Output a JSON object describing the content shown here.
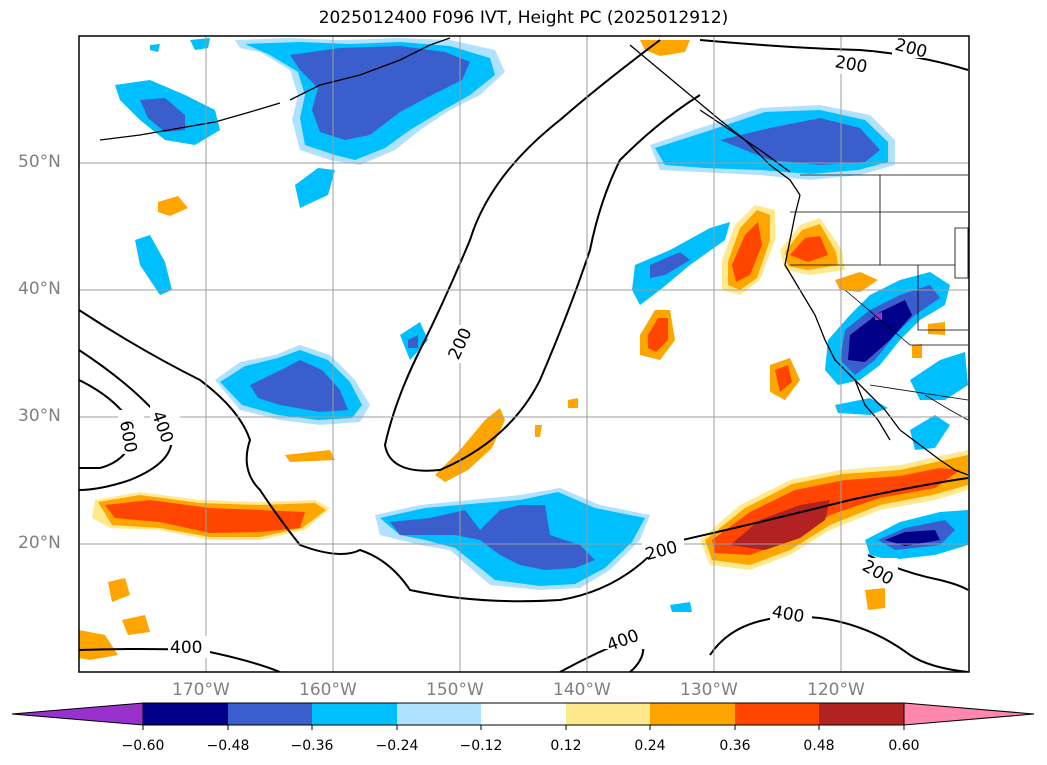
{
  "title": "2025012400 F096 IVT, Height PC (2025012912)",
  "lat_labels": [
    "50°N",
    "40°N",
    "30°N",
    "20°N"
  ],
  "lon_labels": [
    "170°W",
    "160°W",
    "150°W",
    "140°W",
    "130°W",
    "120°W"
  ],
  "contour_labels": [
    "200",
    "200",
    "200",
    "600",
    "400",
    "200",
    "200",
    "400",
    "400"
  ],
  "colorbar": {
    "ticks": [
      "−0.60",
      "−0.48",
      "−0.36",
      "−0.24",
      "−0.12",
      "0.12",
      "0.24",
      "0.36",
      "0.48",
      "0.60"
    ],
    "colors": [
      "#9932cc",
      "#00008b",
      "#3a5fcd",
      "#00bfff",
      "#b0e2ff",
      "#ffffff",
      "#ffe98c",
      "#ffa500",
      "#ff4500",
      "#b22222",
      "#ff86ac"
    ]
  }
}
